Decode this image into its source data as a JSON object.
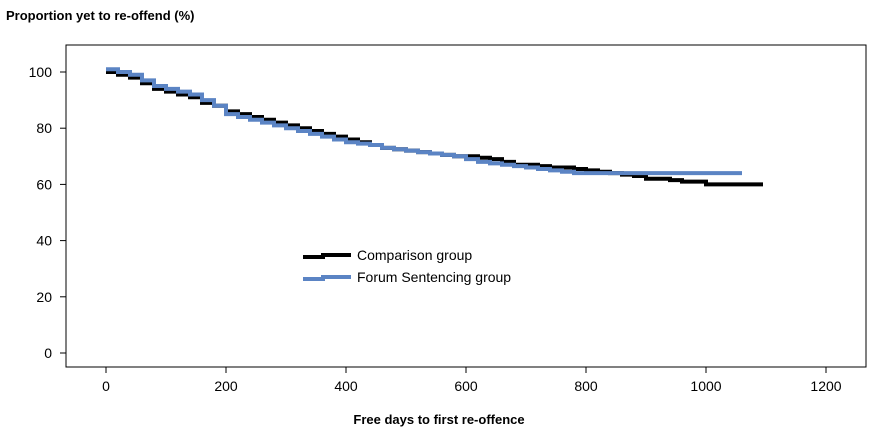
{
  "chart_data": {
    "type": "line",
    "ylabel": "Proportion yet to re-offend (%)",
    "xlabel": "Free days to first re-offence",
    "xlim": [
      0,
      1200
    ],
    "ylim": [
      0,
      100
    ],
    "x_ticks": [
      0,
      200,
      400,
      600,
      800,
      1000,
      1200
    ],
    "y_ticks": [
      0,
      20,
      40,
      60,
      80,
      100
    ],
    "grid": false,
    "legend_position": "center-left",
    "series": [
      {
        "name": "Comparison group",
        "color": "#000000",
        "step": true,
        "points": [
          [
            0,
            100
          ],
          [
            20,
            99
          ],
          [
            40,
            98
          ],
          [
            60,
            96
          ],
          [
            80,
            94
          ],
          [
            100,
            93
          ],
          [
            120,
            92
          ],
          [
            140,
            91
          ],
          [
            160,
            89
          ],
          [
            180,
            88
          ],
          [
            200,
            86
          ],
          [
            220,
            85
          ],
          [
            240,
            84
          ],
          [
            260,
            83
          ],
          [
            280,
            82
          ],
          [
            300,
            81
          ],
          [
            320,
            80
          ],
          [
            340,
            79
          ],
          [
            360,
            78
          ],
          [
            380,
            77
          ],
          [
            400,
            76
          ],
          [
            420,
            75
          ],
          [
            440,
            74
          ],
          [
            460,
            73
          ],
          [
            480,
            72.5
          ],
          [
            500,
            72
          ],
          [
            520,
            71.5
          ],
          [
            540,
            71
          ],
          [
            560,
            70.5
          ],
          [
            580,
            70
          ],
          [
            600,
            70
          ],
          [
            620,
            69.5
          ],
          [
            640,
            69
          ],
          [
            660,
            68
          ],
          [
            680,
            67
          ],
          [
            700,
            67
          ],
          [
            720,
            66.5
          ],
          [
            740,
            66
          ],
          [
            760,
            66
          ],
          [
            780,
            65.5
          ],
          [
            800,
            65
          ],
          [
            820,
            64.5
          ],
          [
            840,
            64
          ],
          [
            860,
            63.5
          ],
          [
            880,
            63
          ],
          [
            900,
            62
          ],
          [
            920,
            62
          ],
          [
            940,
            61.5
          ],
          [
            960,
            61
          ],
          [
            980,
            61
          ],
          [
            1000,
            60
          ],
          [
            1020,
            60
          ],
          [
            1040,
            60
          ],
          [
            1060,
            60
          ],
          [
            1080,
            60
          ],
          [
            1095,
            60
          ]
        ]
      },
      {
        "name": "Forum Sentencing group",
        "color": "#5b84c4",
        "step": true,
        "points": [
          [
            0,
            101
          ],
          [
            20,
            100
          ],
          [
            40,
            99
          ],
          [
            60,
            97
          ],
          [
            80,
            95
          ],
          [
            100,
            94
          ],
          [
            120,
            93
          ],
          [
            140,
            92
          ],
          [
            160,
            90
          ],
          [
            180,
            88
          ],
          [
            200,
            85
          ],
          [
            220,
            84
          ],
          [
            240,
            83
          ],
          [
            260,
            82
          ],
          [
            280,
            81
          ],
          [
            300,
            80
          ],
          [
            320,
            79
          ],
          [
            340,
            78
          ],
          [
            360,
            77
          ],
          [
            380,
            76
          ],
          [
            400,
            75
          ],
          [
            420,
            74.5
          ],
          [
            440,
            74
          ],
          [
            460,
            73
          ],
          [
            480,
            72.5
          ],
          [
            500,
            72
          ],
          [
            520,
            71.5
          ],
          [
            540,
            71
          ],
          [
            560,
            70.5
          ],
          [
            580,
            70
          ],
          [
            600,
            69
          ],
          [
            620,
            68
          ],
          [
            640,
            67.5
          ],
          [
            660,
            67
          ],
          [
            680,
            66.5
          ],
          [
            700,
            66
          ],
          [
            720,
            65.5
          ],
          [
            740,
            65
          ],
          [
            760,
            64.5
          ],
          [
            780,
            64
          ],
          [
            800,
            64
          ],
          [
            820,
            64
          ],
          [
            840,
            64
          ],
          [
            860,
            64
          ],
          [
            880,
            64
          ],
          [
            900,
            64
          ],
          [
            920,
            64
          ],
          [
            940,
            64
          ],
          [
            960,
            64
          ],
          [
            980,
            64
          ],
          [
            1000,
            64
          ],
          [
            1020,
            64
          ],
          [
            1040,
            64
          ],
          [
            1060,
            64
          ]
        ]
      }
    ]
  }
}
